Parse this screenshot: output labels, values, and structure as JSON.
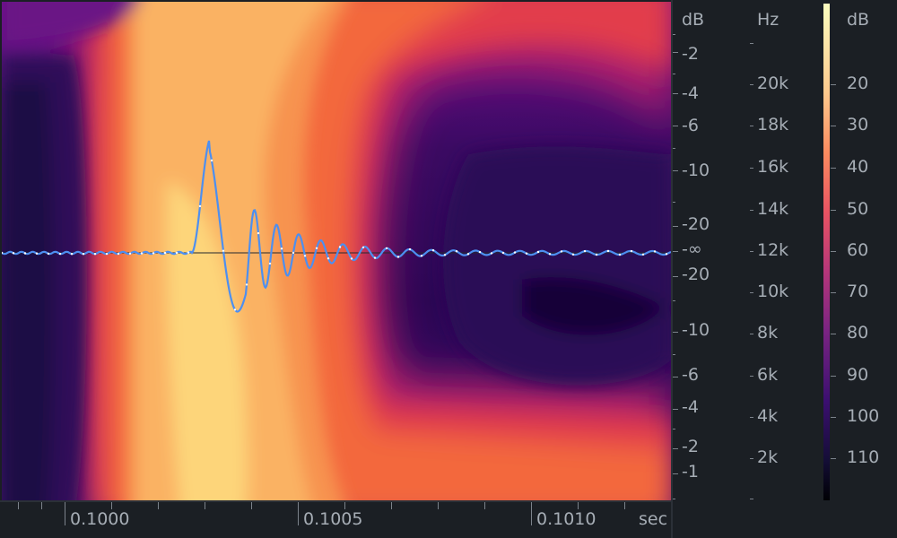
{
  "view": {
    "time_axis": {
      "unit": "sec",
      "labels": [
        "0.1000",
        "0.1005",
        "0.1010"
      ]
    },
    "waveform_scale": {
      "unit": "dB",
      "upper_labels": [
        "-2",
        "-4",
        "-6",
        "-10",
        "-20"
      ],
      "center_label": "-∞",
      "lower_labels": [
        "-20",
        "-10",
        "-6",
        "-4",
        "-2",
        "-1"
      ]
    },
    "frequency_scale": {
      "unit": "Hz",
      "labels": [
        "20k",
        "18k",
        "16k",
        "14k",
        "12k",
        "10k",
        "8k",
        "6k",
        "4k",
        "2k"
      ]
    },
    "colorbar_scale": {
      "unit": "dB",
      "labels": [
        "20",
        "30",
        "40",
        "50",
        "60",
        "70",
        "80",
        "90",
        "100",
        "110"
      ]
    }
  },
  "colors": {
    "background": "#1b1f24",
    "waveform": "#4d8ff0",
    "text": "#a6adb5"
  }
}
